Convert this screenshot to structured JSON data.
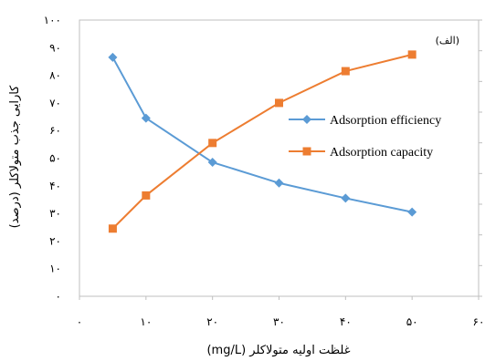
{
  "chart_data": {
    "type": "line",
    "title": "",
    "annotation": "(الف)",
    "xlabel": "غلظت اولیه متولاکلر (mg/L)",
    "ylabel": "کارایی جذب متولاکلر (درصد)",
    "x": [
      5,
      10,
      20,
      30,
      40,
      50
    ],
    "xlim": [
      0,
      60
    ],
    "ylim": [
      0,
      100
    ],
    "x_tick_labels": [
      "۰",
      "۱۰",
      "۲۰",
      "۳۰",
      "۴۰",
      "۵۰",
      "۶۰"
    ],
    "y_tick_labels": [
      "۰",
      "۱۰",
      "۲۰",
      "۳۰",
      "۴۰",
      "۵۰",
      "۶۰",
      "۷۰",
      "۸۰",
      "۹۰",
      "۱۰۰"
    ],
    "right_axis_ticks": 9,
    "grid": false,
    "legend_position": "right",
    "series": [
      {
        "name": "Adsorption efficiency",
        "color": "#5B9BD5",
        "marker": "diamond",
        "values": [
          86.5,
          64.5,
          48.5,
          41,
          35.5,
          30.5
        ]
      },
      {
        "name": "Adsorption capacity",
        "color": "#ED7D31",
        "marker": "square",
        "values": [
          24.5,
          36.5,
          55.5,
          70,
          81.5,
          87.5
        ]
      }
    ]
  }
}
